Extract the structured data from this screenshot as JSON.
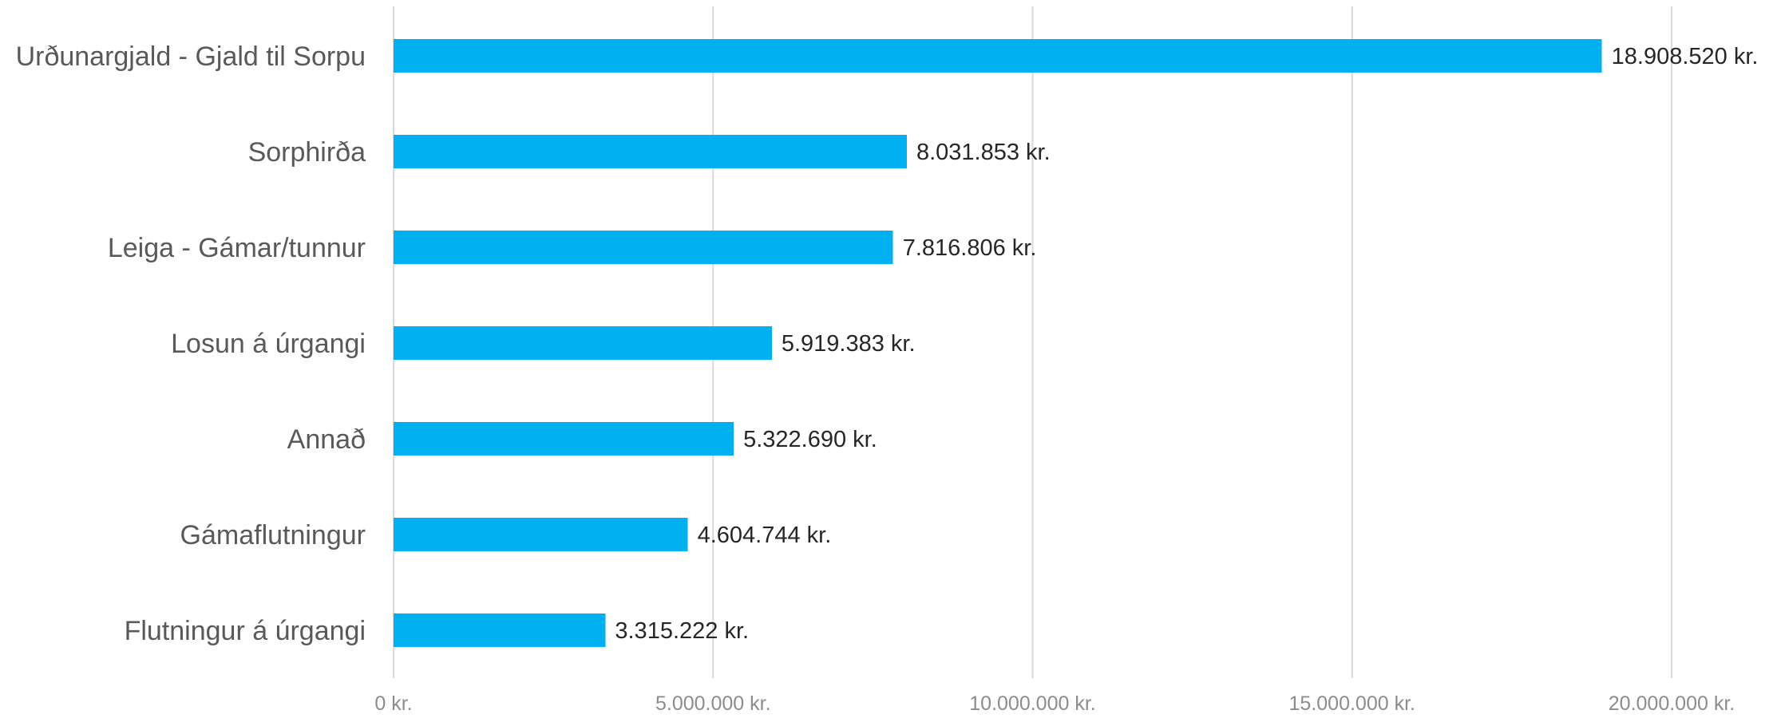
{
  "chart_data": {
    "type": "bar",
    "orientation": "horizontal",
    "categories": [
      "Urðunargjald - Gjald til Sorpu",
      "Sorphirða",
      "Leiga - Gámar/tunnur",
      "Losun á úrgangi",
      "Annað",
      "Gámaflutningur",
      "Flutningur á úrgangi"
    ],
    "values": [
      18908520,
      8031853,
      7816806,
      5919383,
      5322690,
      4604744,
      3315222
    ],
    "value_labels": [
      "18.908.520 kr.",
      "8.031.853 kr.",
      "7.816.806 kr.",
      "5.919.383 kr.",
      "5.322.690 kr.",
      "4.604.744 kr.",
      "3.315.222 kr."
    ],
    "x_ticks": [
      0,
      5000000,
      10000000,
      15000000,
      20000000
    ],
    "x_tick_labels": [
      "0 kr.",
      "5.000.000 kr.",
      "10.000.000 kr.",
      "15.000.000 kr.",
      "20.000.000 kr."
    ],
    "xlim": [
      0,
      20000000
    ],
    "grid": true,
    "bar_color": "#00b0f0",
    "title": "",
    "xlabel": "",
    "ylabel": ""
  }
}
